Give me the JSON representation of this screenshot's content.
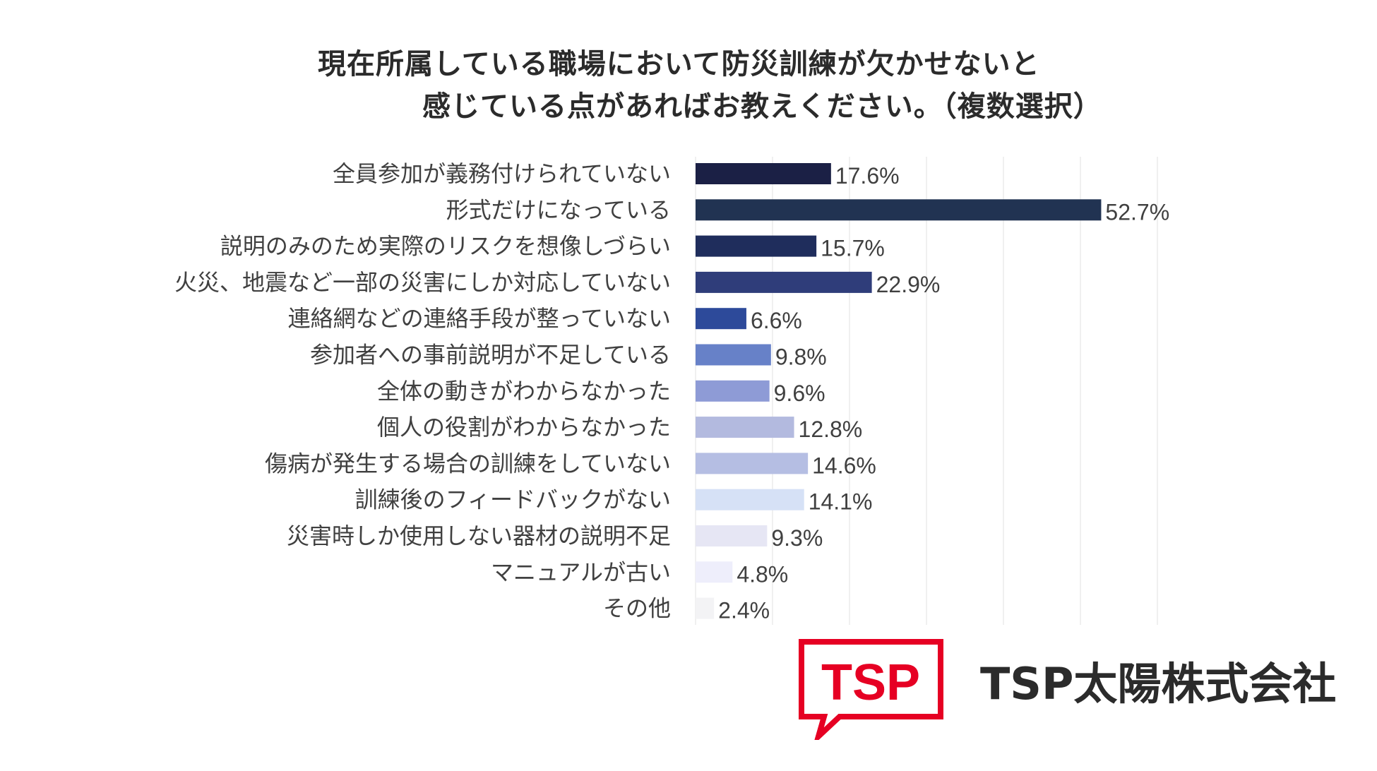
{
  "title_line1": "現在所属している職場において防災訓練が欠かせないと",
  "title_line2": "感じている点があればお教えください。（複数選択）",
  "chart_data": {
    "type": "bar",
    "orientation": "horizontal",
    "xlim": [
      0,
      60
    ],
    "grid": true,
    "categories": [
      "全員参加が義務付けられていない",
      "形式だけになっている",
      "説明のみのため実際のリスクを想像しづらい",
      "火災、地震など一部の災害にしか対応していない",
      "連絡網などの連絡手段が整っていない",
      "参加者への事前説明が不足している",
      "全体の動きがわからなかった",
      "個人の役割がわからなかった",
      "傷病が発生する場合の訓練をしていない",
      "訓練後のフィードバックがない",
      "災害時しか使用しない器材の説明不足",
      "マニュアルが古い",
      "その他"
    ],
    "values": [
      17.6,
      52.7,
      15.7,
      22.9,
      6.6,
      9.8,
      9.6,
      12.8,
      14.6,
      14.1,
      9.3,
      4.8,
      2.4
    ],
    "value_labels": [
      "17.6%",
      "52.7%",
      "15.7%",
      "22.9%",
      "6.6%",
      "9.8%",
      "9.6%",
      "12.8%",
      "14.6%",
      "14.1%",
      "9.3%",
      "4.8%",
      "2.4%"
    ],
    "colors": [
      "#1b2045",
      "#213352",
      "#1f2d5c",
      "#2f3d7a",
      "#2d4a9a",
      "#6781c8",
      "#8e9bd6",
      "#b3badf",
      "#b5bee3",
      "#d6e1f6",
      "#e6e6f4",
      "#eeeefb",
      "#f3f3f5"
    ]
  },
  "logo": {
    "mark_text": "TSP",
    "color": "#e60023"
  },
  "company_name": "TSP太陽株式会社"
}
